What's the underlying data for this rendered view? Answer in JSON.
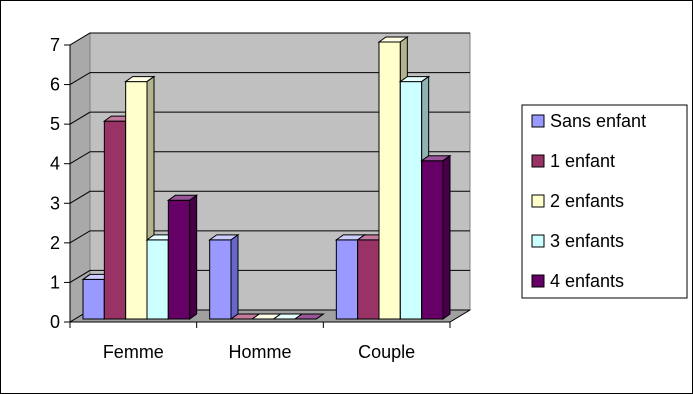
{
  "chart_data": {
    "type": "bar",
    "categories": [
      "Femme",
      "Homme",
      "Couple"
    ],
    "series": [
      {
        "name": "Sans enfant",
        "values": [
          1,
          2,
          2
        ],
        "color": "#9999FF",
        "side": "#6666CC",
        "top": "#CCCCFF"
      },
      {
        "name": "1 enfant",
        "values": [
          5,
          0,
          2
        ],
        "color": "#993366",
        "side": "#6B2447",
        "top": "#C27A9E"
      },
      {
        "name": "2 enfants",
        "values": [
          6,
          0,
          7
        ],
        "color": "#FFFFCC",
        "side": "#B3B38F",
        "top": "#FFFFE6"
      },
      {
        "name": "3 enfants",
        "values": [
          2,
          0,
          6
        ],
        "color": "#CCFFFF",
        "side": "#8FB3B3",
        "top": "#E6FFFF"
      },
      {
        "name": "4 enfants",
        "values": [
          3,
          0,
          4
        ],
        "color": "#660066",
        "side": "#470047",
        "top": "#995599"
      }
    ],
    "ylim": [
      0,
      7
    ],
    "yticks": [
      "0",
      "1",
      "2",
      "3",
      "4",
      "5",
      "6",
      "7"
    ],
    "grid": true,
    "legend_position": "right",
    "plot_background": "#C0C0C0"
  }
}
